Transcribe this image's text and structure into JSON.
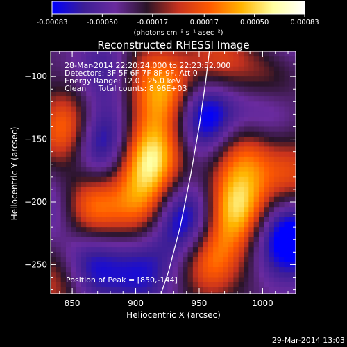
{
  "chart_data": {
    "type": "heatmap",
    "title": "Reconstructed RHESSI Image",
    "xlabel": "Heliocentric X (arcsec)",
    "ylabel": "Heliocentric Y (arcsec)",
    "xlim": [
      833,
      1026
    ],
    "ylim": [
      -273,
      -80
    ],
    "x_ticks": [
      850,
      900,
      950,
      1000
    ],
    "y_ticks": [
      -100,
      -150,
      -200,
      -250
    ],
    "colorbar": {
      "min": -0.00083,
      "max": 0.00083,
      "tick_values": [
        -0.00083,
        -0.0005,
        -0.00017,
        0.00017,
        0.0005,
        0.00083
      ],
      "tick_labels": [
        "-0.00083",
        "-0.00050",
        "-0.00017",
        "0.00017",
        "0.00050",
        "0.00083"
      ],
      "unit_label": "(photons cm⁻² s⁻¹ asec⁻²)",
      "colors": [
        "#0000ff",
        "#3c1e96",
        "#6a2b9e",
        "#2a1428",
        "#c8321e",
        "#ff5a00",
        "#ffb400",
        "#ffffa0",
        "#ffffff"
      ]
    },
    "info": {
      "time_range": "28-Mar-2014 22:20:24.000 to 22:23:52.000",
      "detectors": "Detectors: 3F 5F 6F 7F 8F 9F, Att 0",
      "energy": "Energy Range: 12.0 - 25.0 keV",
      "method": "Clean     Total counts: 8.96E+03"
    },
    "peak_label": "Position of Peak = [850,-144]",
    "limb_curve": {
      "x": [
        958,
        955,
        950,
        943,
        935,
        926,
        920
      ],
      "y": [
        -80,
        -105,
        -140,
        -180,
        -220,
        -255,
        -273
      ]
    },
    "sources": [
      {
        "x": 868,
        "y": -152,
        "amp": -1.0
      },
      {
        "x": 955,
        "y": -130,
        "amp": -0.9
      },
      {
        "x": 938,
        "y": -215,
        "amp": -0.85
      },
      {
        "x": 1020,
        "y": -228,
        "amp": -0.9
      },
      {
        "x": 880,
        "y": -95,
        "amp": -0.5
      },
      {
        "x": 862,
        "y": -250,
        "amp": -0.7
      },
      {
        "x": 1000,
        "y": -125,
        "amp": -0.55
      },
      {
        "x": 840,
        "y": -205,
        "amp": -0.45
      },
      {
        "x": 905,
        "y": -255,
        "amp": -0.5
      },
      {
        "x": 1012,
        "y": -80,
        "amp": -0.4
      },
      {
        "x": 850,
        "y": -144,
        "amp": 1.0
      },
      {
        "x": 862,
        "y": -205,
        "amp": 0.85
      },
      {
        "x": 912,
        "y": -165,
        "amp": 0.95
      },
      {
        "x": 925,
        "y": -115,
        "amp": 0.75
      },
      {
        "x": 905,
        "y": -205,
        "amp": 0.6
      },
      {
        "x": 980,
        "y": -205,
        "amp": 0.9
      },
      {
        "x": 985,
        "y": -160,
        "amp": 0.6
      },
      {
        "x": 958,
        "y": -245,
        "amp": 0.7
      },
      {
        "x": 1005,
        "y": -100,
        "amp": 0.7
      },
      {
        "x": 965,
        "y": -90,
        "amp": 0.5
      },
      {
        "x": 840,
        "y": -262,
        "amp": 0.55
      },
      {
        "x": 1025,
        "y": -180,
        "amp": 0.5
      },
      {
        "x": 900,
        "y": -95,
        "amp": 0.4
      }
    ]
  },
  "footer": {
    "timestamp": "29-Mar-2014 13:03"
  }
}
